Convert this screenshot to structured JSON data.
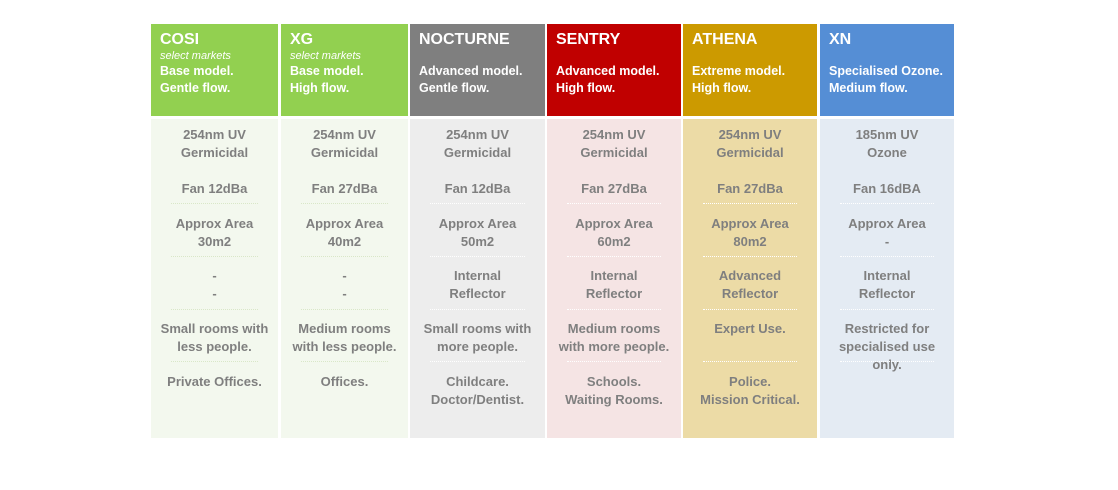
{
  "columns": [
    {
      "name": "COSI",
      "sub": "select markets",
      "desc": [
        "Base model.",
        "Gentle flow."
      ],
      "head_color": "#92d050",
      "body_color": "#f3f8ee",
      "sep_color": "#d9e7c8",
      "cells": [
        [
          "254nm UV",
          "Germicidal"
        ],
        [
          "Fan 12dBa"
        ],
        [
          "Approx Area",
          "30m2"
        ],
        [
          "-",
          "-"
        ],
        [
          "Small rooms with",
          "less people."
        ],
        [
          "Private Offices."
        ]
      ]
    },
    {
      "name": "XG",
      "sub": "select markets",
      "desc": [
        "Base model.",
        "High flow."
      ],
      "head_color": "#92d050",
      "body_color": "#f3f8ee",
      "sep_color": "#d9e7c8",
      "cells": [
        [
          "254nm UV",
          "Germicidal"
        ],
        [
          "Fan 27dBa"
        ],
        [
          "Approx Area",
          "40m2"
        ],
        [
          "-",
          "-"
        ],
        [
          "Medium rooms",
          "with less people."
        ],
        [
          "Offices."
        ]
      ]
    },
    {
      "name": "NOCTURNE",
      "sub": "",
      "desc": [
        "Advanced model.",
        "Gentle flow."
      ],
      "head_color": "#7f7f7f",
      "body_color": "#ededed",
      "sep_color": "#ffffff",
      "cells": [
        [
          "254nm UV",
          "Germicidal"
        ],
        [
          "Fan 12dBa"
        ],
        [
          "Approx Area",
          "50m2"
        ],
        [
          "Internal",
          "Reflector"
        ],
        [
          "Small rooms with",
          "more people."
        ],
        [
          "Childcare.",
          "Doctor/Dentist."
        ]
      ]
    },
    {
      "name": "SENTRY",
      "sub": "",
      "desc": [
        "Advanced model.",
        "High flow."
      ],
      "head_color": "#c00000",
      "body_color": "#f5e4e4",
      "sep_color": "#ffffff",
      "cells": [
        [
          "254nm UV",
          "Germicidal"
        ],
        [
          "Fan 27dBa"
        ],
        [
          "Approx Area",
          "60m2"
        ],
        [
          "Internal",
          "Reflector"
        ],
        [
          "Medium rooms",
          "with more people."
        ],
        [
          "Schools.",
          "Waiting Rooms."
        ]
      ]
    },
    {
      "name": "ATHENA",
      "sub": "",
      "desc": [
        "Extreme model.",
        "High flow."
      ],
      "head_color": "#cc9a00",
      "body_color": "#ecdba6",
      "sep_color": "#ffffff",
      "cells": [
        [
          "254nm UV",
          "Germicidal"
        ],
        [
          "Fan 27dBa"
        ],
        [
          "Approx Area",
          "80m2"
        ],
        [
          "Advanced",
          "Reflector"
        ],
        [
          "Expert Use."
        ],
        [
          "Police.",
          "Mission Critical."
        ]
      ]
    },
    {
      "name": "XN",
      "sub": "",
      "desc": [
        "Specialised Ozone.",
        "Medium flow."
      ],
      "head_color": "#558ed5",
      "body_color": "#e4ebf3",
      "sep_color": "#ffffff",
      "cells": [
        [
          "185nm UV",
          "Ozone"
        ],
        [
          "Fan 16dBA"
        ],
        [
          "Approx Area",
          "-"
        ],
        [
          "Internal",
          "Reflector"
        ],
        [
          "Restricted for",
          "specialised use",
          "only."
        ],
        []
      ]
    }
  ]
}
